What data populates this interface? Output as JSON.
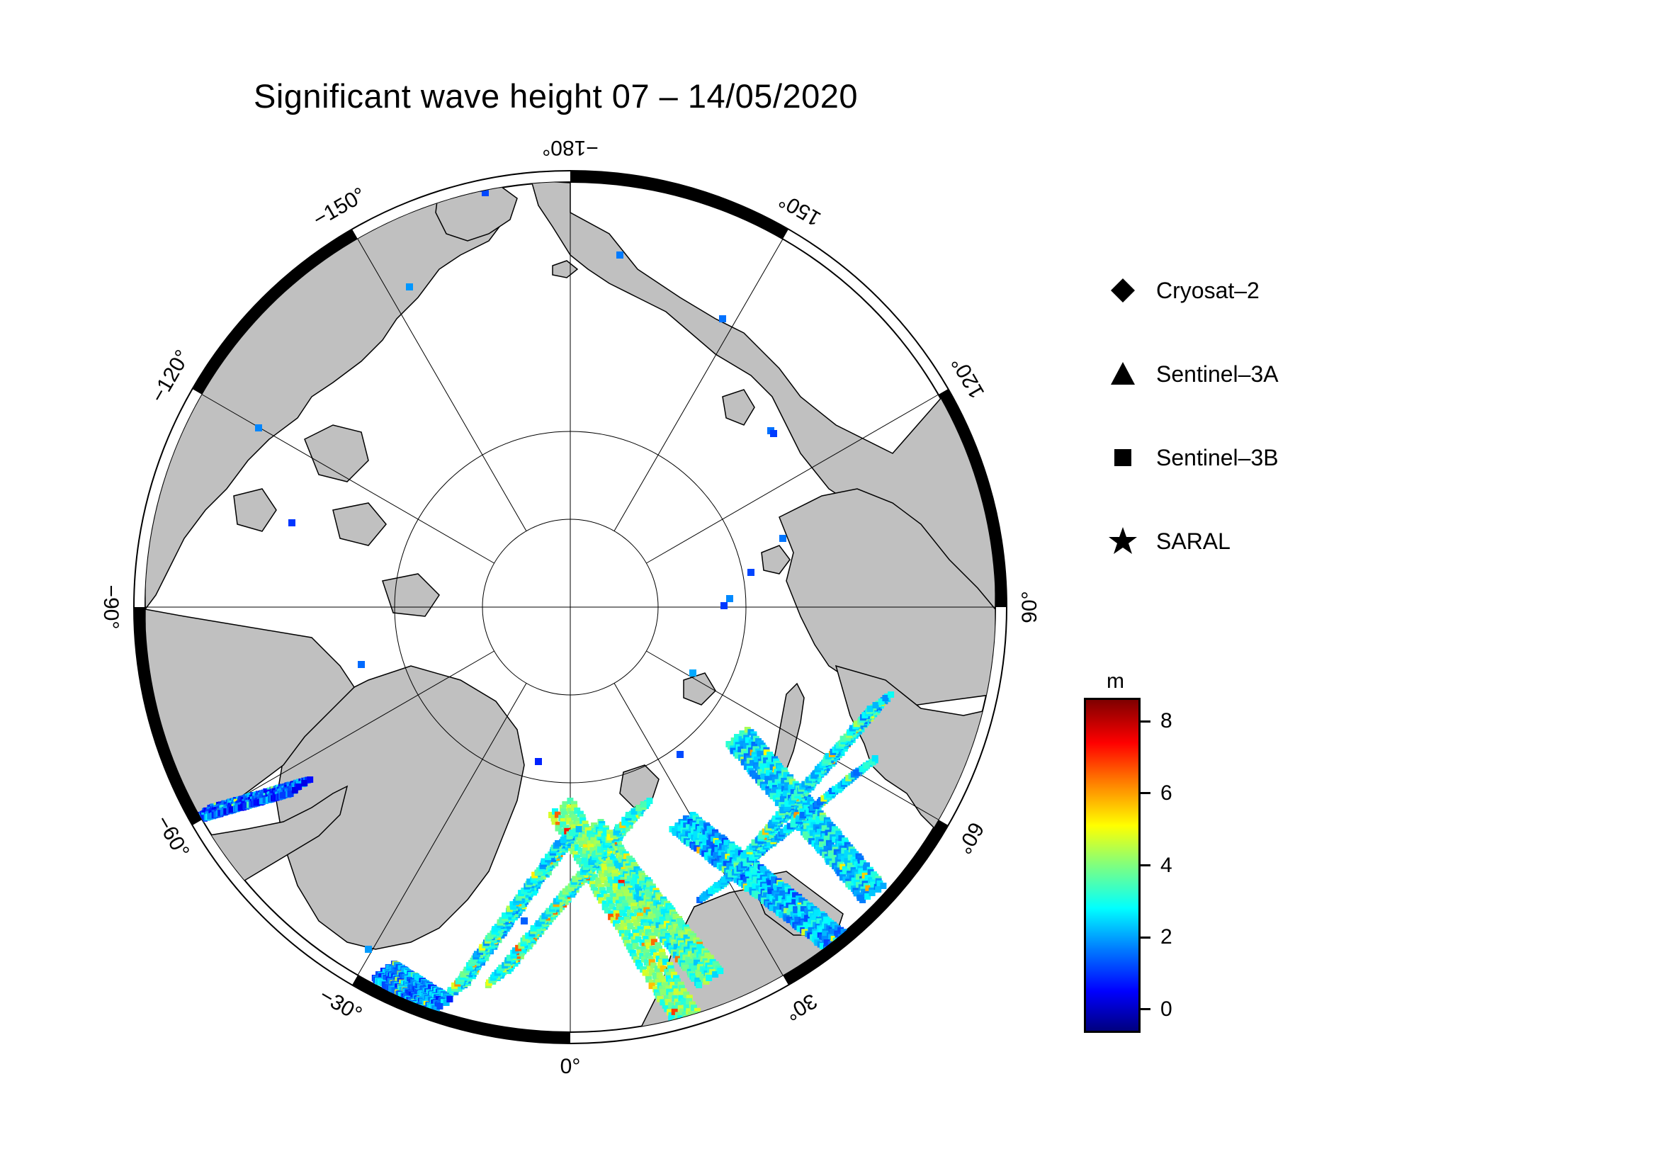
{
  "title": "Significant wave height 07 – 14/05/2020",
  "longitude_labels": [
    {
      "text": "−180°",
      "lon": 180
    },
    {
      "text": "150°",
      "lon": 150
    },
    {
      "text": "120°",
      "lon": 120
    },
    {
      "text": "90°",
      "lon": 90
    },
    {
      "text": "60°",
      "lon": 60
    },
    {
      "text": "30°",
      "lon": 30
    },
    {
      "text": "0°",
      "lon": 0
    },
    {
      "text": "−30°",
      "lon": -30
    },
    {
      "text": "−60°",
      "lon": -60
    },
    {
      "text": "−90°",
      "lon": -90
    },
    {
      "text": "−120°",
      "lon": -120
    },
    {
      "text": "−150°",
      "lon": -150
    }
  ],
  "legend": [
    {
      "label": "Cryosat–2",
      "symbol": "diamond"
    },
    {
      "label": "Sentinel–3A",
      "symbol": "triangle"
    },
    {
      "label": "Sentinel–3B",
      "symbol": "square"
    },
    {
      "label": "SARAL",
      "symbol": "star"
    }
  ],
  "colorbar": {
    "unit": "m",
    "min": -0.6,
    "max": 8.6,
    "ticks": [
      {
        "label": "8",
        "value": 8
      },
      {
        "label": "6",
        "value": 6
      },
      {
        "label": "4",
        "value": 4
      },
      {
        "label": "2",
        "value": 2
      },
      {
        "label": "0",
        "value": 0
      }
    ],
    "colors": [
      "#00007f",
      "#0000ff",
      "#007fff",
      "#00ffff",
      "#7fff7f",
      "#ffff00",
      "#ff7f00",
      "#ff0000",
      "#7f0000"
    ]
  },
  "colors": {
    "land": "#c0c0c0",
    "ocean": "#ffffff",
    "frame": "#000000"
  }
}
